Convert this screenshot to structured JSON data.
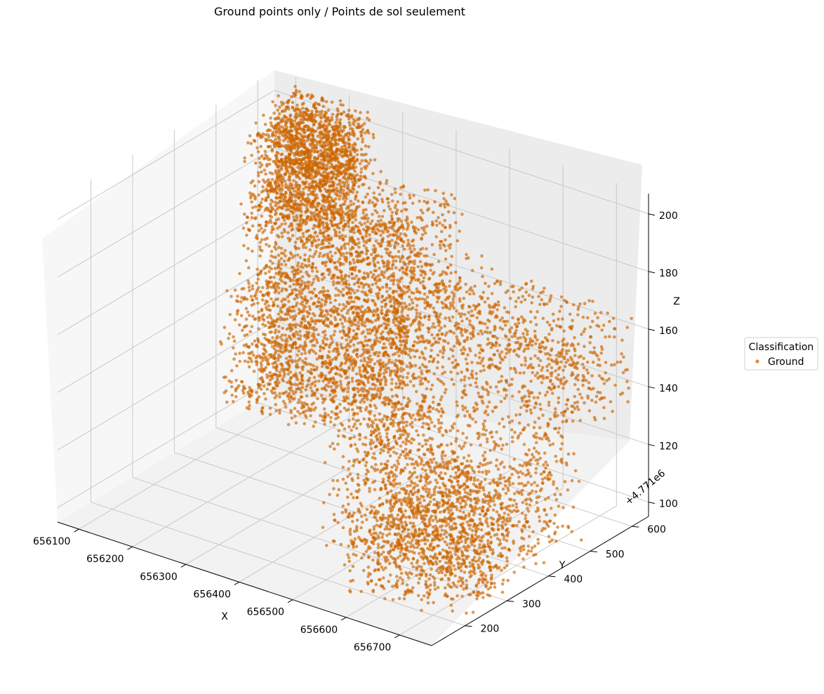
{
  "chart_data": {
    "type": "scatter",
    "projection": "3d",
    "title": "Ground points only / Points de sol seulement",
    "xlabel": "X",
    "ylabel": "Y",
    "zlabel": "Z",
    "y_offset_label": "+4.771e6",
    "x_ticks": [
      656100,
      656200,
      656300,
      656400,
      656500,
      656600,
      656700
    ],
    "y_ticks": [
      200,
      300,
      400,
      500,
      600
    ],
    "z_ticks": [
      100,
      120,
      140,
      160,
      180,
      200
    ],
    "xlim": [
      656060,
      656760
    ],
    "ylim_offset": [
      120,
      640
    ],
    "zlim": [
      95,
      207
    ],
    "grid": true,
    "legend": {
      "title": "Classification",
      "placement": "right",
      "entries": [
        {
          "label": "Ground",
          "color": "#cc6600"
        }
      ]
    },
    "series": [
      {
        "name": "Ground",
        "color": "#cc6600",
        "marker": "dot",
        "clusters": [
          {
            "x": [
              656080,
              656230
            ],
            "y": [
              540,
              630
            ],
            "z": [
              165,
              200
            ],
            "n": 900
          },
          {
            "x": [
              656100,
              656250
            ],
            "y": [
              570,
              640
            ],
            "z": [
              180,
              205
            ],
            "n": 700
          },
          {
            "x": [
              656150,
              656450
            ],
            "y": [
              430,
              600
            ],
            "z": [
              150,
              190
            ],
            "n": 1600
          },
          {
            "x": [
              656200,
              656500
            ],
            "y": [
              330,
              470
            ],
            "z": [
              125,
              165
            ],
            "n": 1700
          },
          {
            "x": [
              656420,
              656760
            ],
            "y": [
              420,
              620
            ],
            "z": [
              135,
              170
            ],
            "n": 1000
          },
          {
            "x": [
              656450,
              656750
            ],
            "y": [
              250,
              500
            ],
            "z": [
              98,
              135
            ],
            "n": 1400
          },
          {
            "x": [
              656550,
              656760
            ],
            "y": [
              160,
              320
            ],
            "z": [
              97,
              125
            ],
            "n": 700
          }
        ]
      }
    ]
  }
}
